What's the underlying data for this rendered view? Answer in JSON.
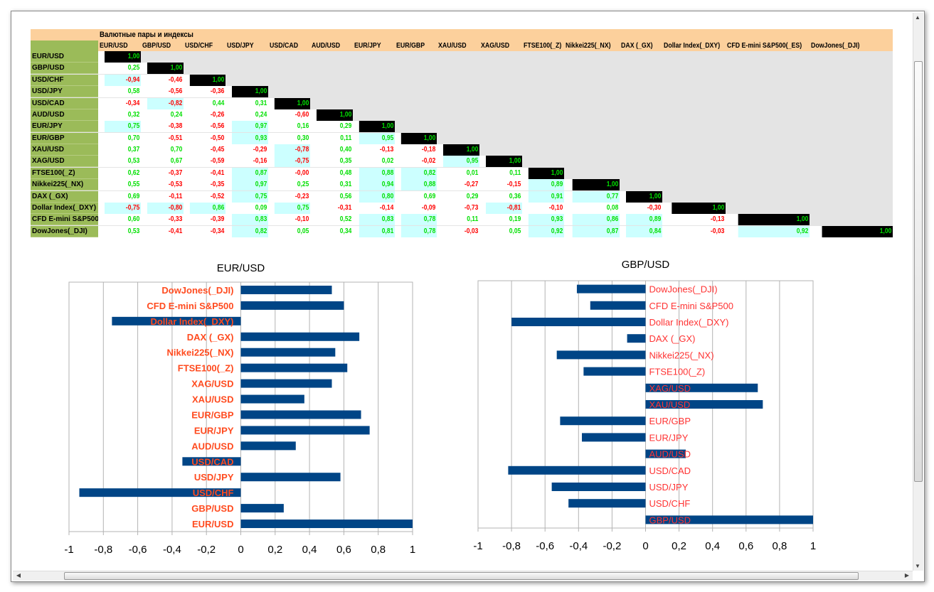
{
  "table": {
    "title": "Валютные пары и индексы",
    "columns": [
      "EUR/USD",
      "GBP/USD",
      "USD/CHF",
      "USD/JPY",
      "USD/CAD",
      "AUD/USD",
      "EUR/JPY",
      "EUR/GBP",
      "XAU/USD",
      "XAG/USD",
      "FTSE100(_Z)",
      "Nikkei225(_NX)",
      "DAX (_GX)",
      "Dollar Index(_DXY)",
      "CFD E-mini S&P500(_ES)",
      "DowJones(_DJI)"
    ],
    "rows": [
      "EUR/USD",
      "GBP/USD",
      "USD/CHF",
      "USD/JPY",
      "USD/CAD",
      "AUD/USD",
      "EUR/JPY",
      "EUR/GBP",
      "XAU/USD",
      "XAG/USD",
      "FTSE100(_Z)",
      "Nikkei225(_NX)",
      "DAX (_GX)",
      "Dollar Index(_DXY)",
      "CFD E-mini S&P500",
      "DowJones(_DJI)"
    ],
    "values": [
      [
        "1,00"
      ],
      [
        "0,25",
        "1,00"
      ],
      [
        "-0,94",
        "-0,46",
        "1,00"
      ],
      [
        "0,58",
        "-0,56",
        "-0,36",
        "1,00"
      ],
      [
        "-0,34",
        "-0,82",
        "0,44",
        "0,31",
        "1,00"
      ],
      [
        "0,32",
        "0,24",
        "-0,26",
        "0,24",
        "-0,60",
        "1,00"
      ],
      [
        "0,75",
        "-0,38",
        "-0,56",
        "0,97",
        "0,16",
        "0,29",
        "1,00"
      ],
      [
        "0,70",
        "-0,51",
        "-0,50",
        "0,93",
        "0,30",
        "0,11",
        "0,95",
        "1,00"
      ],
      [
        "0,37",
        "0,70",
        "-0,45",
        "-0,29",
        "-0,78",
        "0,40",
        "-0,13",
        "-0,18",
        "1,00"
      ],
      [
        "0,53",
        "0,67",
        "-0,59",
        "-0,16",
        "-0,75",
        "0,35",
        "0,02",
        "-0,02",
        "0,95",
        "1,00"
      ],
      [
        "0,62",
        "-0,37",
        "-0,41",
        "0,87",
        "-0,00",
        "0,48",
        "0,88",
        "0,82",
        "0,01",
        "0,11",
        "1,00"
      ],
      [
        "0,55",
        "-0,53",
        "-0,35",
        "0,97",
        "0,25",
        "0,31",
        "0,94",
        "0,88",
        "-0,27",
        "-0,15",
        "0,89",
        "1,00"
      ],
      [
        "0,69",
        "-0,11",
        "-0,52",
        "0,75",
        "-0,23",
        "0,56",
        "0,80",
        "0,69",
        "0,29",
        "0,36",
        "0,91",
        "0,77",
        "1,00"
      ],
      [
        "-0,75",
        "-0,80",
        "0,86",
        "0,09",
        "0,75",
        "-0,31",
        "-0,14",
        "-0,09",
        "-0,73",
        "-0,81",
        "-0,10",
        "0,08",
        "-0,30",
        "1,00"
      ],
      [
        "0,60",
        "-0,33",
        "-0,39",
        "0,83",
        "-0,10",
        "0,52",
        "0,83",
        "0,78",
        "0,11",
        "0,19",
        "0,93",
        "0,86",
        "0,89",
        "-0,13",
        "1,00"
      ],
      [
        "0,53",
        "-0,41",
        "-0,34",
        "0,82",
        "0,05",
        "0,34",
        "0,81",
        "0,78",
        "-0,03",
        "0,05",
        "0,92",
        "0,87",
        "0,84",
        "-0,03",
        "0,92",
        "1,00"
      ]
    ]
  },
  "colors": {
    "header": "#fcd09c",
    "rowheader": "#9bbb59",
    "pos": "#00e000",
    "neg": "#ff0000",
    "highlight": "#ccffff",
    "bar": "#004586",
    "label1": "#ff4b1f",
    "label2": "#ff3333"
  },
  "chart_data": [
    {
      "type": "bar",
      "orientation": "horizontal",
      "title": "EUR/USD",
      "xlim": [
        -1,
        1
      ],
      "xticks": [
        "-1",
        "-0,8",
        "-0,6",
        "-0,4",
        "-0,2",
        "0",
        "0,2",
        "0,4",
        "0,6",
        "0,8",
        "1"
      ],
      "categories": [
        "EUR/USD",
        "GBP/USD",
        "USD/CHF",
        "USD/JPY",
        "USD/CAD",
        "AUD/USD",
        "EUR/JPY",
        "EUR/GBP",
        "XAU/USD",
        "XAG/USD",
        "FTSE100(_Z)",
        "Nikkei225(_NX)",
        "DAX (_GX)",
        "Dollar Index(_DXY)",
        "CFD E-mini S&P500",
        "DowJones(_DJI)"
      ],
      "values": [
        1,
        0.25,
        -0.94,
        0.58,
        -0.34,
        0.32,
        0.75,
        0.7,
        0.37,
        0.53,
        0.62,
        0.55,
        0.69,
        -0.75,
        0.6,
        0.53
      ]
    },
    {
      "type": "bar",
      "orientation": "horizontal",
      "title": "GBP/USD",
      "xlim": [
        -1,
        1
      ],
      "xticks": [
        "-1",
        "-0,8",
        "-0,6",
        "-0,4",
        "-0,2",
        "0",
        "0,2",
        "0,4",
        "0,6",
        "0,8",
        "1"
      ],
      "categories": [
        "GBP/USD",
        "USD/CHF",
        "USD/JPY",
        "USD/CAD",
        "AUD/USD",
        "EUR/JPY",
        "EUR/GBP",
        "XAU/USD",
        "XAG/USD",
        "FTSE100(_Z)",
        "Nikkei225(_NX)",
        "DAX (_GX)",
        "Dollar Index(_DXY)",
        "CFD E-mini S&P500",
        "DowJones(_DJI)"
      ],
      "values": [
        1,
        -0.46,
        -0.56,
        -0.82,
        0.24,
        -0.38,
        -0.51,
        0.7,
        0.67,
        -0.37,
        -0.53,
        -0.11,
        -0.8,
        -0.33,
        -0.41
      ]
    }
  ]
}
